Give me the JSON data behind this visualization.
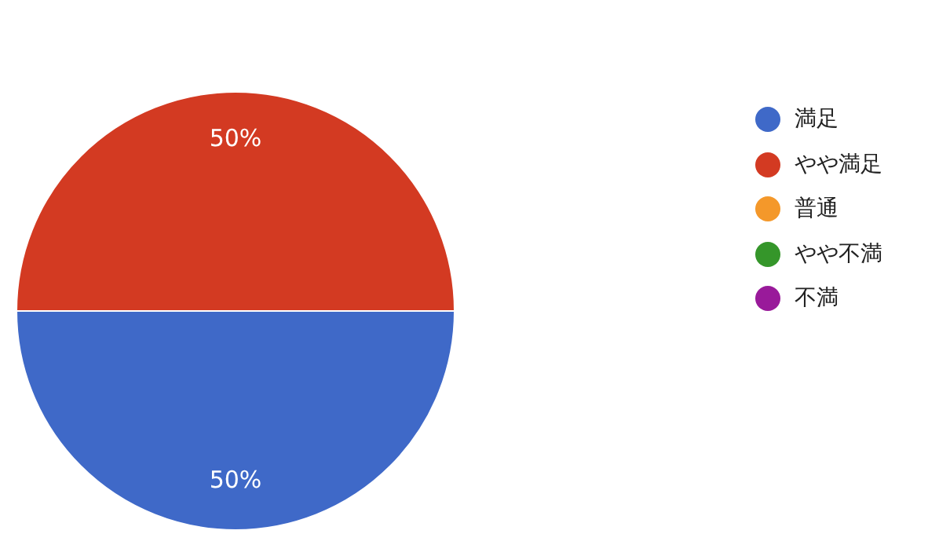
{
  "chart_data": {
    "type": "pie",
    "categories": [
      "満足",
      "やや満足",
      "普通",
      "やや不満",
      "不満"
    ],
    "values": [
      50,
      50,
      0,
      0,
      0
    ],
    "colors": [
      "#3f69c8",
      "#d33a22",
      "#f4982a",
      "#35962a",
      "#991a9a"
    ],
    "value_labels": [
      "50%",
      "50%",
      null,
      null,
      null
    ],
    "legend": "right"
  }
}
